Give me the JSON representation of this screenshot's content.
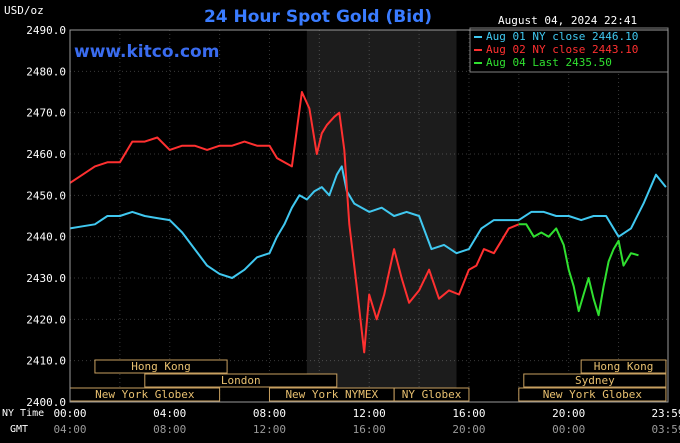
{
  "chart_data": {
    "type": "line",
    "title": "24 Hour Spot Gold (Bid)",
    "ylabel": "USD/oz",
    "watermark": "www.kitco.com",
    "timestamp": "August 04, 2024 22:41",
    "ylim": [
      2400,
      2490
    ],
    "y_ticks": [
      "2490.0",
      "2480.0",
      "2470.0",
      "2460.0",
      "2450.0",
      "2440.0",
      "2430.0",
      "2420.0",
      "2410.0",
      "2400.0"
    ],
    "x_row_labels": {
      "ny": "NY Time",
      "gmt": "GMT"
    },
    "x_ticks_ny": [
      "00:00",
      "04:00",
      "08:00",
      "12:00",
      "16:00",
      "20:00",
      "23:59"
    ],
    "x_ticks_gmt": [
      "04:00",
      "08:00",
      "12:00",
      "16:00",
      "20:00",
      "00:00",
      "03:59"
    ],
    "grid": true,
    "shaded_period": [
      9.5,
      15.5
    ],
    "legend_position": "top-right",
    "series": [
      {
        "name": "Aug 01 NY close 2446.10",
        "color": "#40c8f0",
        "x": [
          0,
          0.5,
          1,
          1.5,
          2,
          2.5,
          3,
          3.5,
          4,
          4.5,
          5,
          5.5,
          6,
          6.5,
          7,
          7.5,
          8,
          8.3,
          8.6,
          8.9,
          9.2,
          9.5,
          9.8,
          10.1,
          10.4,
          10.7,
          10.9,
          11.1,
          11.4,
          11.7,
          12,
          12.5,
          13,
          13.5,
          14,
          14.5,
          15,
          15.5,
          16,
          16.5,
          17,
          17.5,
          18,
          18.5,
          19,
          19.5,
          20,
          20.5,
          21,
          21.5,
          22,
          22.5,
          23,
          23.5,
          23.9
        ],
        "y": [
          2442,
          2442.5,
          2443,
          2445,
          2445,
          2446,
          2445,
          2444.5,
          2444,
          2441,
          2437,
          2433,
          2431,
          2430,
          2432,
          2435,
          2436,
          2440,
          2443,
          2447,
          2450,
          2449,
          2451,
          2452,
          2450,
          2455,
          2457,
          2451,
          2448,
          2447,
          2446,
          2447,
          2445,
          2446,
          2445,
          2437,
          2438,
          2436,
          2437,
          2442,
          2444,
          2444,
          2444,
          2446,
          2446,
          2445,
          2445,
          2444,
          2445,
          2445,
          2440,
          2442,
          2448,
          2455,
          2452
        ]
      },
      {
        "name": "Aug 02 NY close 2443.10",
        "color": "#ff3030",
        "x": [
          0,
          0.5,
          1,
          1.5,
          2,
          2.5,
          3,
          3.5,
          4,
          4.5,
          5,
          5.5,
          6,
          6.5,
          7,
          7.5,
          8,
          8.3,
          8.6,
          8.9,
          9.1,
          9.3,
          9.6,
          9.9,
          10.1,
          10.3,
          10.6,
          10.8,
          11,
          11.2,
          11.5,
          11.8,
          12,
          12.3,
          12.6,
          13,
          13.3,
          13.6,
          14,
          14.4,
          14.8,
          15.2,
          15.6,
          16,
          16.3,
          16.6,
          17,
          17.3,
          17.6,
          18
        ],
        "y": [
          2453,
          2455,
          2457,
          2458,
          2458,
          2463,
          2463,
          2464,
          2461,
          2462,
          2462,
          2461,
          2462,
          2462,
          2463,
          2462,
          2462,
          2459,
          2458,
          2457,
          2466,
          2475,
          2471,
          2460,
          2465,
          2467,
          2469,
          2470,
          2461,
          2443,
          2428,
          2412,
          2426,
          2420,
          2426,
          2437,
          2430,
          2424,
          2427,
          2432,
          2425,
          2427,
          2426,
          2432,
          2433,
          2437,
          2436,
          2439,
          2442,
          2443
        ]
      },
      {
        "name": "Aug 04 Last 2435.50",
        "color": "#30e030",
        "x": [
          18,
          18.3,
          18.6,
          18.9,
          19.2,
          19.5,
          19.8,
          20,
          20.2,
          20.4,
          20.6,
          20.8,
          21,
          21.2,
          21.4,
          21.6,
          21.8,
          22,
          22.2,
          22.5,
          22.8
        ],
        "y": [
          2443,
          2443,
          2440,
          2441,
          2440,
          2442,
          2438,
          2432,
          2428,
          2422,
          2426,
          2430,
          2425,
          2421,
          2428,
          2434,
          2437,
          2439,
          2433,
          2436,
          2435.5
        ]
      }
    ],
    "session_bars": [
      {
        "label": "Hong Kong",
        "row": 0,
        "start": 1,
        "end": 6.3
      },
      {
        "label": "Hong Kong",
        "row": 0,
        "start": 20.5,
        "end": 23.9
      },
      {
        "label": "London",
        "row": 1,
        "start": 3,
        "end": 10.7
      },
      {
        "label": "Sydney",
        "row": 1,
        "start": 18.2,
        "end": 23.9
      },
      {
        "label": "New York Globex",
        "row": 2,
        "start": 0,
        "end": 6
      },
      {
        "label": "New York NYMEX",
        "row": 2,
        "start": 8,
        "end": 13
      },
      {
        "label": "NY Globex",
        "row": 2,
        "start": 13,
        "end": 16
      },
      {
        "label": "New York Globex",
        "row": 2,
        "start": 18,
        "end": 23.9
      }
    ]
  }
}
